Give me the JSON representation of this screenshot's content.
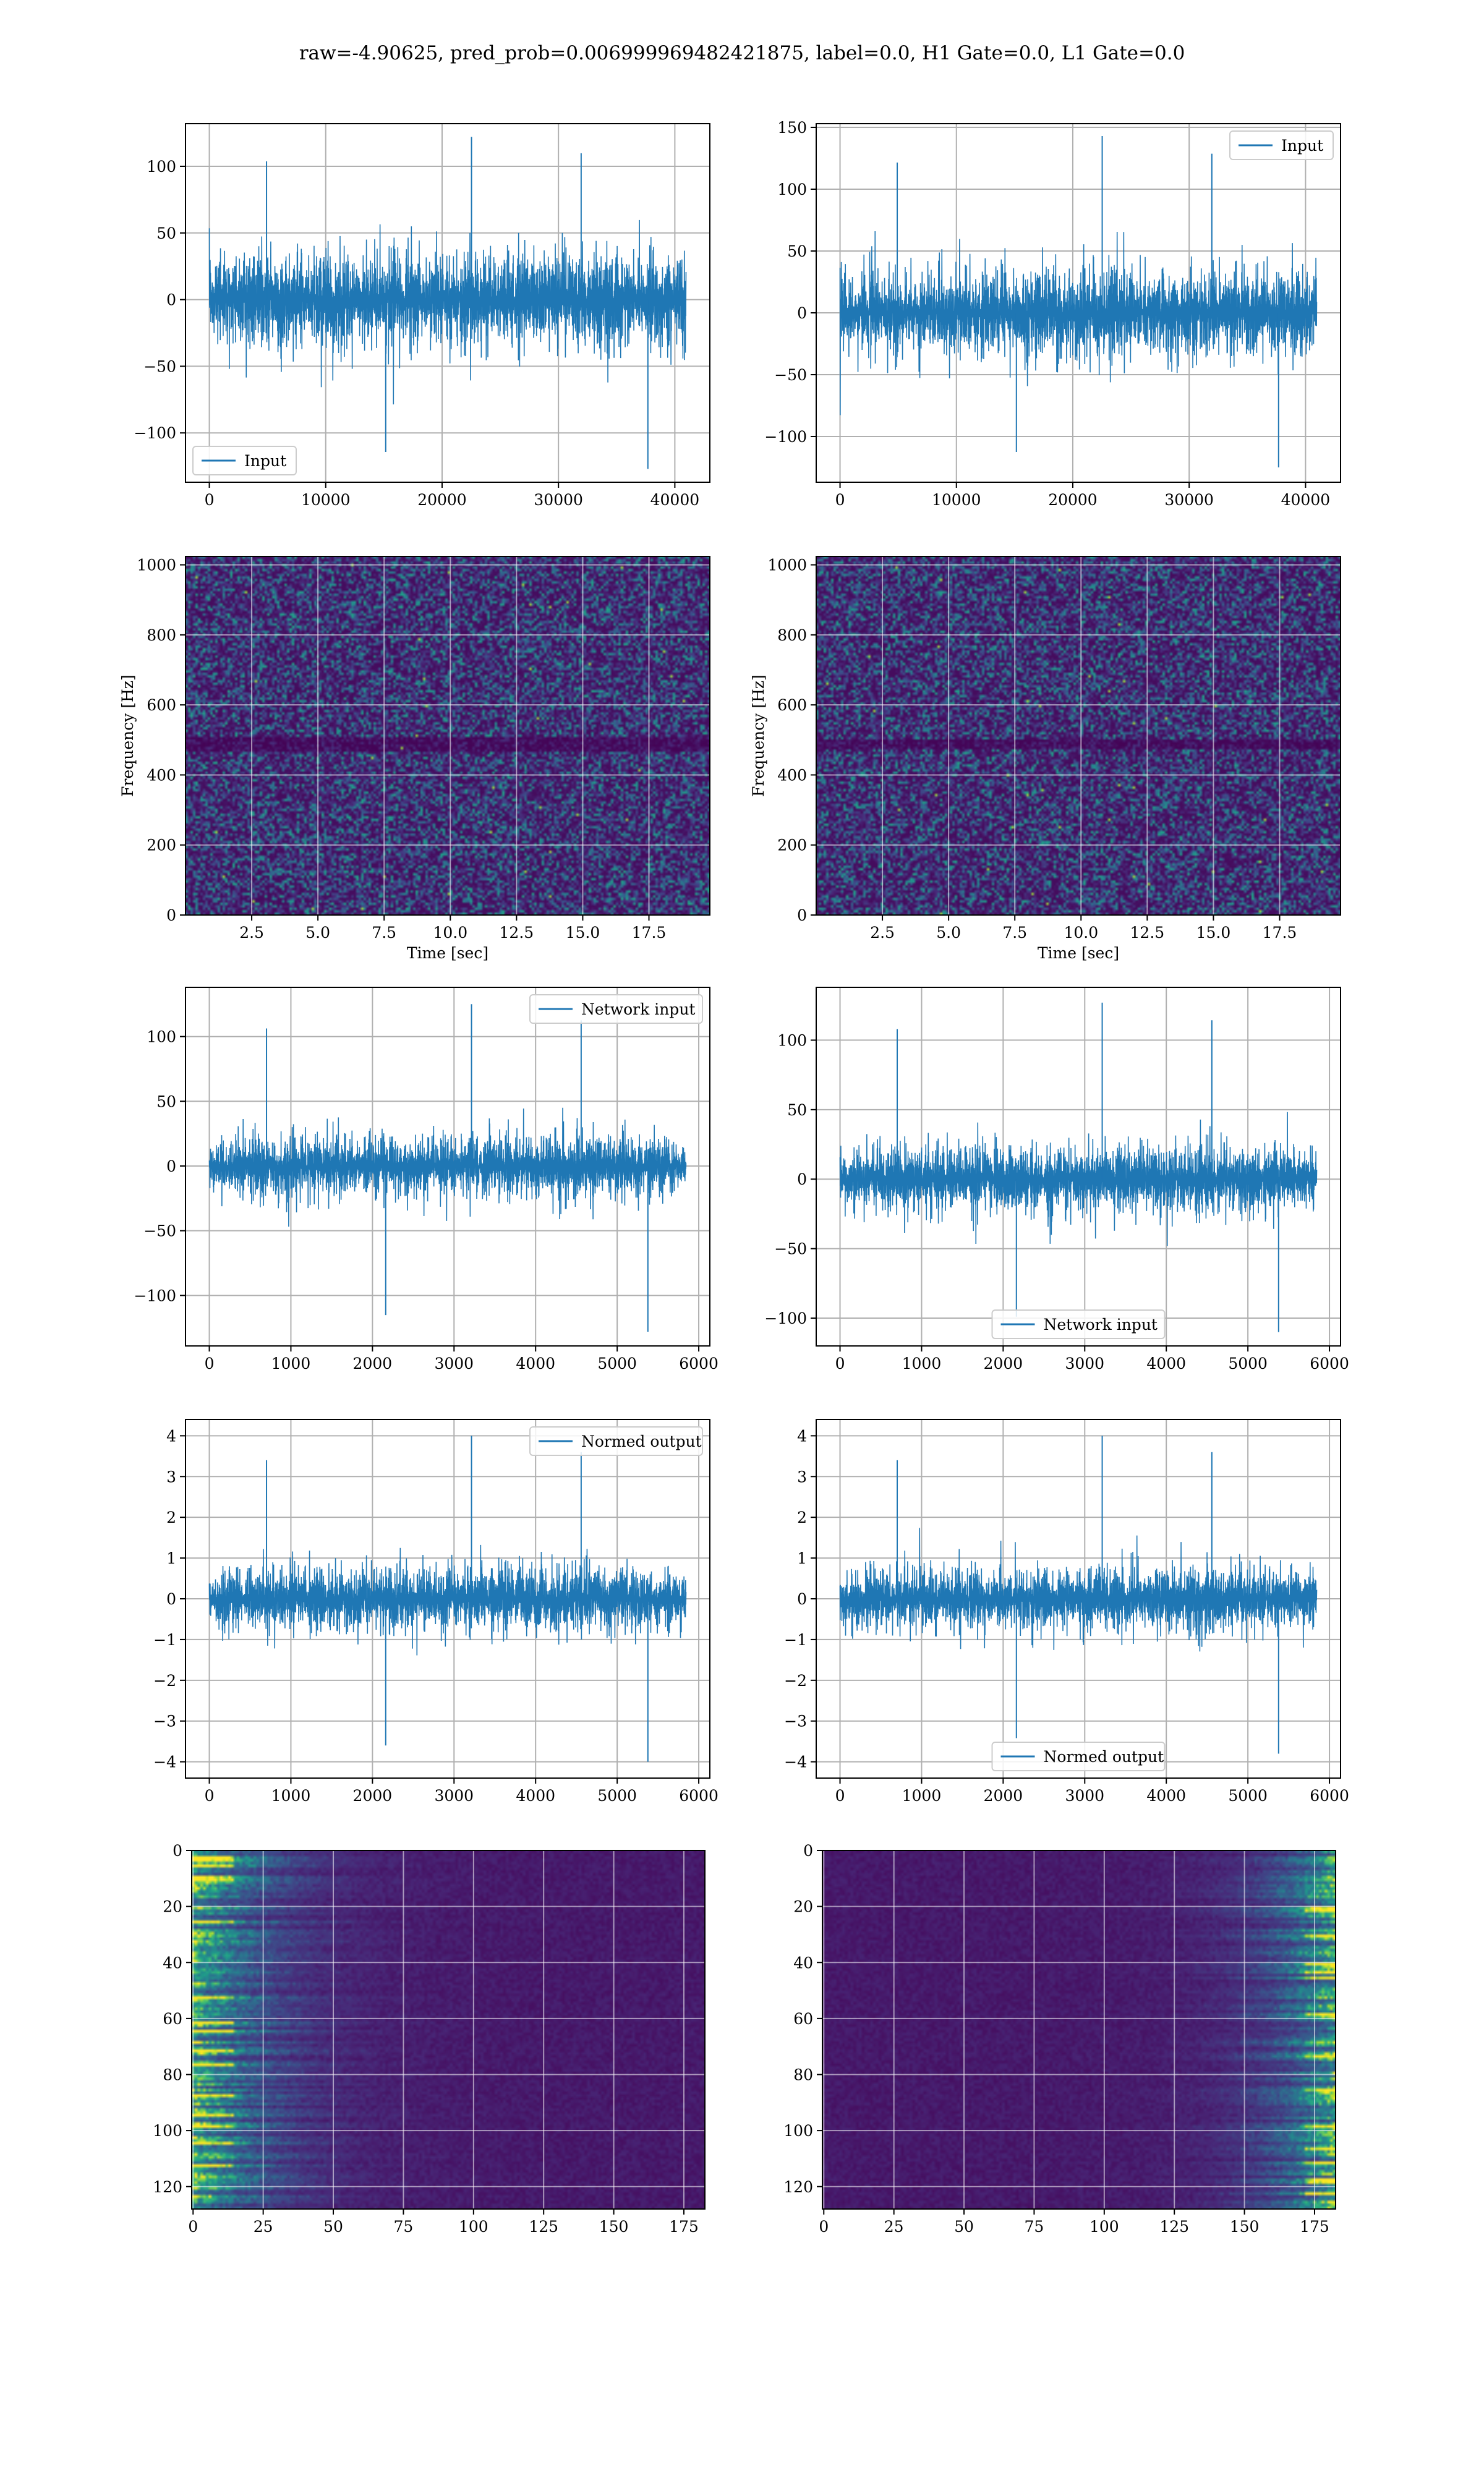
{
  "figure": {
    "suptitle": "raw=-4.90625, pred_prob=0.006999969482421875, label=0.0, H1 Gate=0.0, L1 Gate=0.0",
    "colors": {
      "line": "#1f77b4",
      "grid": "#b0b0b0",
      "viridis_low": "#440154",
      "viridis_mid": "#21918c",
      "viridis_high": "#fde725"
    }
  },
  "chart_data": [
    {
      "id": "h1-input",
      "type": "line",
      "title": "",
      "xlabel": "",
      "ylabel": "",
      "xlim": [
        -2048,
        43008
      ],
      "ylim": [
        -137,
        132
      ],
      "xticks": [
        0,
        10000,
        20000,
        30000,
        40000
      ],
      "yticks": [
        -100,
        -50,
        0,
        50,
        100
      ],
      "grid": true,
      "legend_loc": "lower-left",
      "series": [
        {
          "name": "Input",
          "n": 40960,
          "x_range": [
            0,
            40960
          ],
          "mean": 0,
          "core_amplitude": 60,
          "extreme_range": [
            -127,
            122
          ],
          "envelope": "flat"
        }
      ]
    },
    {
      "id": "l1-input",
      "type": "line",
      "title": "",
      "xlabel": "",
      "ylabel": "",
      "xlim": [
        -2048,
        43008
      ],
      "ylim": [
        -137,
        153
      ],
      "xticks": [
        0,
        10000,
        20000,
        30000,
        40000
      ],
      "yticks": [
        -100,
        -50,
        0,
        50,
        100,
        150
      ],
      "grid": true,
      "legend_loc": "upper-right",
      "series": [
        {
          "name": "Input",
          "n": 40960,
          "x_range": [
            0,
            40960
          ],
          "mean": 0,
          "core_amplitude": 60,
          "extreme_range": [
            -125,
            143
          ],
          "envelope": "flat"
        }
      ]
    },
    {
      "id": "h1-spectrogram",
      "type": "heatmap",
      "title": "",
      "xlabel": "Time [sec]",
      "ylabel": "Frequency [Hz]",
      "xlim": [
        0,
        19.8
      ],
      "ylim": [
        0,
        1024
      ],
      "xticks": [
        2.5,
        5.0,
        7.5,
        10.0,
        12.5,
        15.0,
        17.5
      ],
      "yticks": [
        0,
        200,
        400,
        600,
        800,
        1000
      ],
      "grid": true,
      "colormap": "viridis",
      "pattern": "uniform-noise",
      "dark_band_hz": [
        470,
        510
      ]
    },
    {
      "id": "l1-spectrogram",
      "type": "heatmap",
      "title": "",
      "xlabel": "Time [sec]",
      "ylabel": "Frequency [Hz]",
      "xlim": [
        0,
        19.8
      ],
      "ylim": [
        0,
        1024
      ],
      "xticks": [
        2.5,
        5.0,
        7.5,
        10.0,
        12.5,
        15.0,
        17.5
      ],
      "yticks": [
        0,
        200,
        400,
        600,
        800,
        1000
      ],
      "grid": true,
      "colormap": "viridis",
      "pattern": "uniform-noise",
      "dark_band_hz": [
        480,
        505
      ]
    },
    {
      "id": "h1-network-input",
      "type": "line",
      "title": "",
      "xlabel": "",
      "ylabel": "",
      "xlim": [
        -292,
        6136
      ],
      "ylim": [
        -139,
        138
      ],
      "xticks": [
        0,
        1000,
        2000,
        3000,
        4000,
        5000,
        6000
      ],
      "yticks": [
        -100,
        -50,
        0,
        50,
        100
      ],
      "grid": true,
      "legend_loc": "upper-right",
      "series": [
        {
          "name": "Network input",
          "n": 5844,
          "x_range": [
            0,
            5844
          ],
          "mean": 0,
          "core_amplitude": 42,
          "extreme_range": [
            -128,
            125
          ],
          "envelope": "taper-ends"
        }
      ]
    },
    {
      "id": "l1-network-input",
      "type": "line",
      "title": "",
      "xlabel": "",
      "ylabel": "",
      "xlim": [
        -292,
        6136
      ],
      "ylim": [
        -120,
        138
      ],
      "xticks": [
        0,
        1000,
        2000,
        3000,
        4000,
        5000,
        6000
      ],
      "yticks": [
        -100,
        -50,
        0,
        50,
        100
      ],
      "grid": true,
      "legend_loc": "lower-center",
      "series": [
        {
          "name": "Network input",
          "n": 5844,
          "x_range": [
            0,
            5844
          ],
          "mean": 0,
          "core_amplitude": 42,
          "extreme_range": [
            -110,
            127
          ],
          "envelope": "taper-ends"
        }
      ]
    },
    {
      "id": "h1-normed-output",
      "type": "line",
      "title": "",
      "xlabel": "",
      "ylabel": "",
      "xlim": [
        -292,
        6136
      ],
      "ylim": [
        -4.4,
        4.4
      ],
      "xticks": [
        0,
        1000,
        2000,
        3000,
        4000,
        5000,
        6000
      ],
      "yticks": [
        -4,
        -3,
        -2,
        -1,
        0,
        1,
        2,
        3,
        4
      ],
      "grid": true,
      "legend_loc": "upper-right",
      "series": [
        {
          "name": "Normed output",
          "n": 5844,
          "x_range": [
            0,
            5844
          ],
          "mean": 0,
          "core_amplitude": 1.35,
          "extreme_range": [
            -4.0,
            4.0
          ],
          "envelope": "taper-ends"
        }
      ]
    },
    {
      "id": "l1-normed-output",
      "type": "line",
      "title": "",
      "xlabel": "",
      "ylabel": "",
      "xlim": [
        -292,
        6136
      ],
      "ylim": [
        -4.4,
        4.4
      ],
      "xticks": [
        0,
        1000,
        2000,
        3000,
        4000,
        5000,
        6000
      ],
      "yticks": [
        -4,
        -3,
        -2,
        -1,
        0,
        1,
        2,
        3,
        4
      ],
      "grid": true,
      "legend_loc": "lower-center",
      "series": [
        {
          "name": "Normed output",
          "n": 5844,
          "x_range": [
            0,
            5844
          ],
          "mean": 0,
          "core_amplitude": 1.35,
          "extreme_range": [
            -3.8,
            4.0
          ],
          "envelope": "taper-ends"
        }
      ]
    },
    {
      "id": "h1-feature-map",
      "type": "heatmap",
      "title": "",
      "xlabel": "",
      "ylabel": "",
      "xlim": [
        -0.5,
        182.5
      ],
      "ylim": [
        128,
        0
      ],
      "xticks": [
        0,
        25,
        50,
        75,
        100,
        125,
        150,
        175
      ],
      "yticks": [
        0,
        20,
        40,
        60,
        80,
        100,
        120
      ],
      "grid": true,
      "colormap": "viridis",
      "pattern": "bright-at-left",
      "bright_x_range": [
        0,
        25
      ]
    },
    {
      "id": "l1-feature-map",
      "type": "heatmap",
      "title": "",
      "xlabel": "",
      "ylabel": "",
      "xlim": [
        -0.5,
        182.5
      ],
      "ylim": [
        128,
        0
      ],
      "xticks": [
        0,
        25,
        50,
        75,
        100,
        125,
        150,
        175
      ],
      "yticks": [
        0,
        20,
        40,
        60,
        80,
        100,
        120
      ],
      "grid": true,
      "colormap": "viridis",
      "pattern": "bright-at-right",
      "bright_x_range": [
        150,
        182
      ]
    }
  ]
}
